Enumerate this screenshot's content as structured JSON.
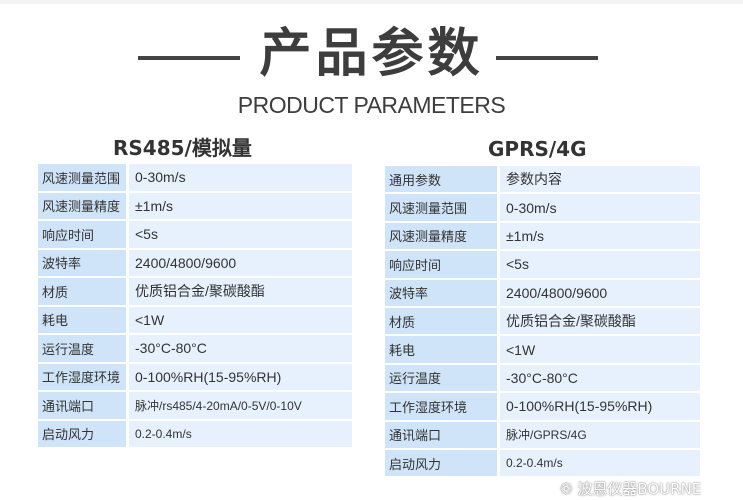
{
  "header": {
    "title": "产品参数",
    "subtitle": "PRODUCT PARAMETERS"
  },
  "left": {
    "title": "RS485/模拟量",
    "rows": [
      {
        "label": "风速测量范围",
        "value": "0-30m/s"
      },
      {
        "label": "风速测量精度",
        "value": "±1m/s"
      },
      {
        "label": "响应时间",
        "value": "<5s"
      },
      {
        "label": "波特率",
        "value": "2400/4800/9600"
      },
      {
        "label": "材质",
        "value": "优质铝合金/聚碳酸酯"
      },
      {
        "label": "耗电",
        "value": "<1W"
      },
      {
        "label": "运行温度",
        "value": "-30°C-80°C"
      },
      {
        "label": "工作湿度环境",
        "value": "0-100%RH(15-95%RH)"
      },
      {
        "label": "通讯端口",
        "value": "脉冲/rs485/4-20mA/0-5V/0-10V"
      },
      {
        "label": "启动风力",
        "value": "0.2-0.4m/s"
      }
    ]
  },
  "right": {
    "title": "GPRS/4G",
    "rows": [
      {
        "label": "通用参数",
        "value": "参数内容"
      },
      {
        "label": "风速测量范围",
        "value": "0-30m/s"
      },
      {
        "label": "风速测量精度",
        "value": "±1m/s"
      },
      {
        "label": "响应时间",
        "value": "<5s"
      },
      {
        "label": "波特率",
        "value": "2400/4800/9600"
      },
      {
        "label": "材质",
        "value": "优质铝合金/聚碳酸酯"
      },
      {
        "label": "耗电",
        "value": "<1W"
      },
      {
        "label": "运行温度",
        "value": "-30°C-80°C"
      },
      {
        "label": "工作湿度环境",
        "value": "0-100%RH(15-95%RH)"
      },
      {
        "label": "通讯端口",
        "value": "脉冲/GPRS/4G"
      },
      {
        "label": "启动风力",
        "value": "0.2-0.4m/s"
      }
    ]
  },
  "watermark": "波恩仪器BOURNE"
}
